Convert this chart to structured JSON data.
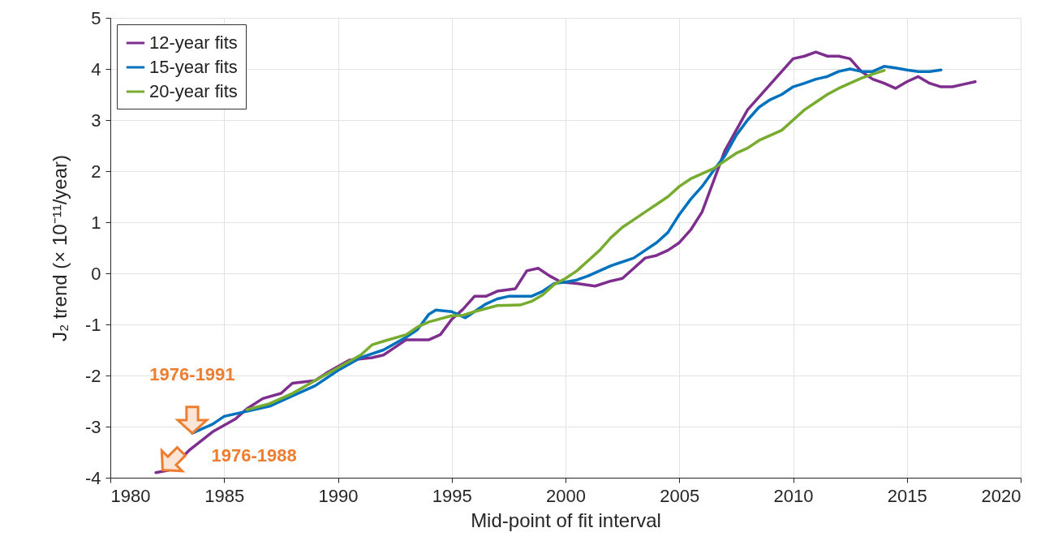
{
  "chart_data": {
    "type": "line",
    "xlabel": "Mid-point of fit interval",
    "ylabel": "J₂ trend (× 10⁻¹¹/year)",
    "xlim": [
      1980,
      2020
    ],
    "xticks": [
      1980,
      1985,
      1990,
      1995,
      2000,
      2005,
      2010,
      2015,
      2020
    ],
    "ylim": [
      -4,
      5
    ],
    "yticks": [
      -4,
      -3,
      -2,
      -1,
      0,
      1,
      2,
      3,
      4,
      5
    ],
    "grid": true,
    "legend": "top left",
    "line_style": "solid",
    "marker": "none",
    "series": [
      {
        "name": "12-year fits",
        "color": "#7e2f8e",
        "x": [
          1982.0,
          1982.6,
          1983.5,
          1984.5,
          1985.5,
          1986,
          1986.7,
          1987.5,
          1988,
          1989,
          1989.5,
          1990.5,
          1991.5,
          1992,
          1992.5,
          1993,
          1994,
          1994.5,
          1995,
          1995.5,
          1996,
          1996.5,
          1997,
          1997.8,
          1998.3,
          1998.8,
          1999.3,
          1999.8,
          2000.5,
          2001.3,
          2002,
          2002.5,
          2003,
          2003.5,
          2004,
          2004.5,
          2005,
          2005.5,
          2006,
          2006.5,
          2007,
          2007.5,
          2008,
          2008.5,
          2009,
          2009.5,
          2010,
          2010.5,
          2011,
          2011.5,
          2012,
          2012.5,
          2013,
          2013.5,
          2014,
          2014.5,
          2015,
          2015.5,
          2016,
          2016.5,
          2017,
          2017.5,
          2018
        ],
        "values": [
          -3.9,
          -3.85,
          -3.45,
          -3.1,
          -2.85,
          -2.65,
          -2.45,
          -2.35,
          -2.15,
          -2.1,
          -1.95,
          -1.7,
          -1.65,
          -1.6,
          -1.45,
          -1.3,
          -1.3,
          -1.2,
          -0.9,
          -0.7,
          -0.45,
          -0.45,
          -0.35,
          -0.3,
          0.05,
          0.1,
          -0.05,
          -0.17,
          -0.2,
          -0.25,
          -0.15,
          -0.1,
          0.1,
          0.3,
          0.35,
          0.45,
          0.6,
          0.85,
          1.2,
          1.8,
          2.4,
          2.8,
          3.2,
          3.45,
          3.7,
          3.95,
          4.2,
          4.25,
          4.33,
          4.25,
          4.25,
          4.2,
          3.95,
          3.8,
          3.72,
          3.62,
          3.75,
          3.85,
          3.72,
          3.65,
          3.65,
          3.7,
          3.75
        ]
      },
      {
        "name": "15-year fits",
        "color": "#0072bd",
        "x": [
          1983.6,
          1984.5,
          1985,
          1986,
          1987,
          1988,
          1989,
          1990,
          1991,
          1992,
          1993,
          1993.5,
          1994,
          1994.3,
          1995,
          1995.6,
          1996,
          1996.5,
          1997,
          1997.5,
          1998.5,
          1999,
          1999.5,
          2000,
          2000.5,
          2001,
          2002,
          2003,
          2003.5,
          2004,
          2004.5,
          2005,
          2005.5,
          2006,
          2006.6,
          2007,
          2007.5,
          2008,
          2008.5,
          2009,
          2009.5,
          2010,
          2010.5,
          2011,
          2011.5,
          2012,
          2012.5,
          2013,
          2013.5,
          2014,
          2014.5,
          2015,
          2015.5,
          2016,
          2016.5
        ],
        "values": [
          -3.13,
          -2.95,
          -2.8,
          -2.7,
          -2.6,
          -2.4,
          -2.2,
          -1.9,
          -1.65,
          -1.5,
          -1.25,
          -1.1,
          -0.8,
          -0.72,
          -0.75,
          -0.87,
          -0.75,
          -0.6,
          -0.5,
          -0.45,
          -0.45,
          -0.35,
          -0.2,
          -0.17,
          -0.13,
          -0.05,
          0.15,
          0.3,
          0.45,
          0.6,
          0.8,
          1.15,
          1.45,
          1.7,
          2.07,
          2.3,
          2.7,
          3.0,
          3.25,
          3.4,
          3.5,
          3.65,
          3.72,
          3.8,
          3.85,
          3.95,
          4.0,
          3.95,
          3.95,
          4.05,
          4.02,
          3.98,
          3.95,
          3.95,
          3.98
        ]
      },
      {
        "name": "20-year fits",
        "color": "#77ac30",
        "x": [
          1986,
          1987,
          1988,
          1989,
          1990,
          1991,
          1991.5,
          1992,
          1993,
          1993.5,
          1994,
          1995,
          1995.5,
          1996,
          1997,
          1998,
          1998.5,
          1999,
          1999.5,
          2000,
          2000.5,
          2001,
          2001.5,
          2002,
          2002.5,
          2003,
          2003.5,
          2004,
          2004.5,
          2005,
          2005.5,
          2006,
          2006.5,
          2007,
          2007.5,
          2008,
          2008.5,
          2009,
          2009.5,
          2010,
          2010.5,
          2011,
          2011.5,
          2012,
          2012.5,
          2013,
          2013.5,
          2014
        ],
        "values": [
          -2.67,
          -2.55,
          -2.35,
          -2.1,
          -1.85,
          -1.6,
          -1.4,
          -1.33,
          -1.2,
          -1.05,
          -0.95,
          -0.83,
          -0.82,
          -0.75,
          -0.63,
          -0.62,
          -0.55,
          -0.42,
          -0.22,
          -0.1,
          0.05,
          0.25,
          0.45,
          0.7,
          0.9,
          1.05,
          1.2,
          1.35,
          1.5,
          1.7,
          1.85,
          1.95,
          2.05,
          2.2,
          2.35,
          2.45,
          2.6,
          2.7,
          2.8,
          3.0,
          3.2,
          3.35,
          3.5,
          3.62,
          3.72,
          3.82,
          3.9,
          3.97
        ]
      }
    ],
    "annotations": [
      {
        "text": "1976-1991",
        "x": 1983.6,
        "y": -3.13
      },
      {
        "text": "1976-1988",
        "x": 1982.3,
        "y": -3.85
      }
    ]
  }
}
